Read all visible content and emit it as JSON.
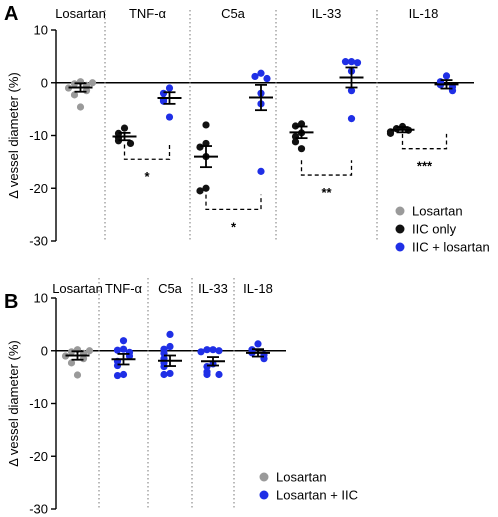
{
  "colors": {
    "losartan": "#9a9a9a",
    "iic_only": "#111111",
    "iic_losartan": "#1f2fe6"
  },
  "chart_data": [
    {
      "type": "scatter",
      "panel": "A",
      "ylabel": "Δ vessel diameter (%)",
      "ylim": [
        -30,
        10
      ],
      "yticks": [
        "10",
        "0",
        "-10",
        "-20",
        "-30"
      ],
      "groups": [
        {
          "label": "Losartan"
        },
        {
          "label": "TNF-α"
        },
        {
          "label": "C5a"
        },
        {
          "label": "IL-33"
        },
        {
          "label": "IL-18"
        }
      ],
      "legend": [
        {
          "key": "losartan",
          "label": "Losartan"
        },
        {
          "key": "iic_only",
          "label": "IIC only"
        },
        {
          "key": "iic_losartan",
          "label": "IIC + losartan"
        }
      ],
      "legend_position": "bottom-right",
      "series": [
        {
          "key": "losartan",
          "group": 0,
          "mean": -0.9,
          "sem": 0.8,
          "values": [
            0.2,
            -0.2,
            -0.5,
            -1.0,
            -1.5,
            -2.3,
            -4.6,
            0.0
          ]
        },
        {
          "key": "iic_only",
          "group": 1,
          "mean": -10.2,
          "sem": 0.7,
          "values": [
            -8.6,
            -9.6,
            -10.4,
            -11.0,
            -11.5
          ]
        },
        {
          "key": "iic_losartan",
          "group": 1,
          "mean": -2.9,
          "sem": 1.1,
          "values": [
            -1.0,
            -2.0,
            -3.2,
            -3.5,
            -6.5
          ]
        },
        {
          "key": "iic_only",
          "group": 2,
          "mean": -14.0,
          "sem": 2.0,
          "values": [
            -8.0,
            -11.5,
            -12.2,
            -14.0,
            -20.0,
            -20.5
          ]
        },
        {
          "key": "iic_losartan",
          "group": 2,
          "mean": -2.8,
          "sem": 2.4,
          "values": [
            1.8,
            1.2,
            0.8,
            -2.0,
            -4.0,
            -16.8
          ]
        },
        {
          "key": "iic_only",
          "group": 3,
          "mean": -9.4,
          "sem": 1.1,
          "values": [
            -7.8,
            -8.2,
            -9.5,
            -10.2,
            -11.2,
            -12.5
          ]
        },
        {
          "key": "iic_losartan",
          "group": 3,
          "mean": 1.0,
          "sem": 1.9,
          "values": [
            4.0,
            4.0,
            3.8,
            2.2,
            -1.5,
            -6.8
          ]
        },
        {
          "key": "iic_only",
          "group": 4,
          "mean": -8.9,
          "sem": 0.5,
          "values": [
            -8.3,
            -8.7,
            -9.0,
            -9.3,
            -9.6
          ]
        },
        {
          "key": "iic_losartan",
          "group": 4,
          "mean": -0.3,
          "sem": 0.8,
          "values": [
            1.3,
            0.2,
            -0.4,
            -0.8,
            -1.5
          ]
        }
      ],
      "significance": [
        {
          "group": 1,
          "label": "*",
          "y": -14.5
        },
        {
          "group": 2,
          "label": "*",
          "y": -24.0
        },
        {
          "group": 3,
          "label": "**",
          "y": -17.5
        },
        {
          "group": 4,
          "label": "***",
          "y": -12.5
        }
      ]
    },
    {
      "type": "scatter",
      "panel": "B",
      "ylabel": "Δ vessel diameter (%)",
      "ylim": [
        -30,
        10
      ],
      "yticks": [
        "10",
        "0",
        "-10",
        "-20",
        "-30"
      ],
      "groups": [
        {
          "label": "Losartan"
        },
        {
          "label": "TNF-α"
        },
        {
          "label": "C5a"
        },
        {
          "label": "IL-33"
        },
        {
          "label": "IL-18"
        }
      ],
      "legend": [
        {
          "key": "losartan",
          "label": "Losartan"
        },
        {
          "key": "iic_losartan",
          "label": "Losartan + IIC"
        }
      ],
      "legend_position": "bottom-right",
      "series": [
        {
          "key": "losartan",
          "group": 0,
          "mean": -0.9,
          "sem": 0.8,
          "values": [
            0.2,
            -0.2,
            -0.5,
            -1.0,
            -1.5,
            -2.3,
            -4.6,
            0.0
          ]
        },
        {
          "key": "iic_losartan",
          "group": 1,
          "mean": -1.6,
          "sem": 1.0,
          "values": [
            1.9,
            0.3,
            0.1,
            -0.3,
            -1.0,
            -2.0,
            -2.8,
            -4.5,
            -4.7
          ]
        },
        {
          "key": "iic_losartan",
          "group": 2,
          "mean": -1.9,
          "sem": 1.0,
          "values": [
            3.1,
            0.8,
            0.3,
            -0.5,
            -1.5,
            -2.3,
            -3.0,
            -4.3,
            -4.5
          ]
        },
        {
          "key": "iic_losartan",
          "group": 3,
          "mean": -2.0,
          "sem": 0.8,
          "values": [
            0.2,
            0.2,
            0.0,
            -0.2,
            -2.5,
            -3.0,
            -4.0,
            -4.5,
            -4.5
          ]
        },
        {
          "key": "iic_losartan",
          "group": 4,
          "mean": -0.4,
          "sem": 0.7,
          "values": [
            1.3,
            0.2,
            -0.4,
            -0.8,
            -1.5
          ]
        }
      ]
    }
  ]
}
